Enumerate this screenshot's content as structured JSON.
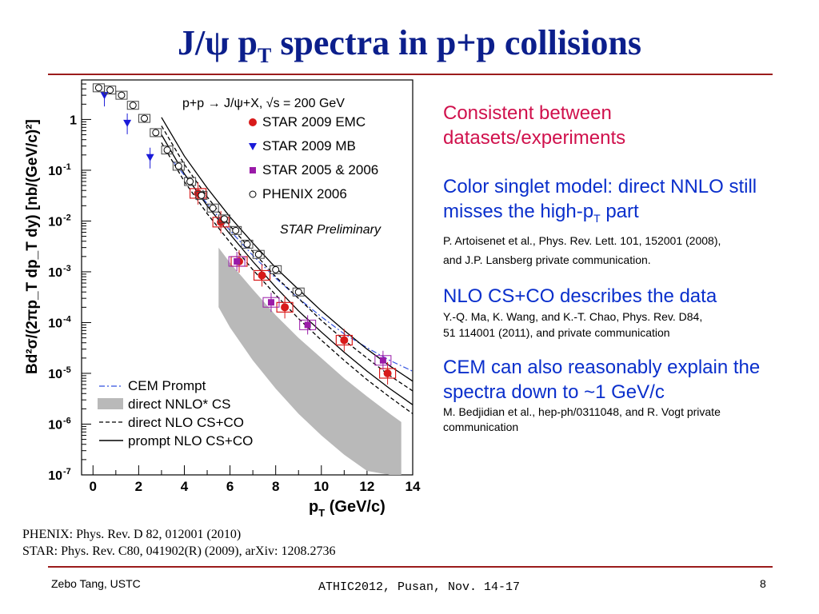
{
  "slide": {
    "title_pre": "J/ψ p",
    "title_sub": "T",
    "title_post": " spectra in p+p collisions",
    "page_number": "8",
    "footer_left": "Zebo Tang, USTC",
    "footer_center": "ATHIC2012, Pusan, Nov. 14-17",
    "references": [
      "PHENIX:  Phys. Rev. D 82, 012001 (2010)",
      "STAR:  Phys. Rev. C80, 041902(R) (2009), arXiv: 1208.2736"
    ]
  },
  "notes": {
    "consistent": "Consistent between datasets/experiments",
    "cs_pre": "Color singlet model: direct NNLO still misses the high-p",
    "cs_sub": "T",
    "cs_post": " part",
    "cs_ref1": "P. Artoisenet et al., Phys. Rev. Lett. 101, 152001 (2008),",
    "cs_ref2": "and J.P. Lansberg private communication.",
    "nlo": "NLO CS+CO describes the data",
    "nlo_ref1": "Y.-Q. Ma, K. Wang, and K.-T. Chao, Phys. Rev. D84,",
    "nlo_ref2": "51 114001 (2011), and private communication",
    "cem": "CEM can also reasonably explain the spectra down to ~1 GeV/c",
    "cem_ref": "M. Bedjidian et al., hep-ph/0311048, and R. Vogt private communication"
  },
  "chart_data": {
    "type": "scatter",
    "process_label": "p+p → J/ψ+X,  √s = 200 GeV",
    "watermark": "STAR Preliminary",
    "xlabel": "p",
    "xlabel_sub": "T",
    "xlabel_unit": " (GeV/c)",
    "ylabel": "Bd²σ/(2πp_T dp_T dy) [nb/(GeV/c)²]",
    "xlim": [
      -0.5,
      14
    ],
    "ylim": [
      1e-07,
      6
    ],
    "log_y": true,
    "x_ticks": [
      "0",
      "2",
      "4",
      "6",
      "8",
      "10",
      "12",
      "14"
    ],
    "y_tick_labels": [
      "1",
      "10",
      "10",
      "10",
      "10",
      "10",
      "10",
      "10"
    ],
    "y_tick_exps": [
      "",
      "-1",
      "-2",
      "-3",
      "-4",
      "-5",
      "-6",
      "-7"
    ],
    "colors": {
      "star_emc": "#d81a1a",
      "star_mb": "#1a1ad8",
      "star_0506": "#9a1aa8",
      "phenix": "#000000",
      "band": "#b9b9b9",
      "cem": "#3050e0"
    },
    "series": [
      {
        "name": "STAR 2009 EMC",
        "marker": "circle",
        "x": [
          4.6,
          5.6,
          6.4,
          7.4,
          8.4,
          11.0,
          12.9
        ],
        "y": [
          0.035,
          0.0095,
          0.0016,
          0.00085,
          0.0002,
          4.5e-05,
          1e-05
        ]
      },
      {
        "name": "STAR 2009 MB",
        "marker": "triangle",
        "x": [
          0.5,
          1.5,
          2.5
        ],
        "y": [
          3.0,
          0.85,
          0.18
        ]
      },
      {
        "name": "STAR 2005 & 2006",
        "marker": "square",
        "x": [
          6.3,
          7.8,
          9.4,
          12.7
        ],
        "y": [
          0.0016,
          0.00025,
          9e-05,
          1.8e-05
        ]
      },
      {
        "name": "PHENIX 2006",
        "marker": "open-circle",
        "x": [
          0.25,
          0.75,
          1.25,
          1.75,
          2.25,
          2.75,
          3.25,
          3.75,
          4.25,
          4.75,
          5.25,
          5.75,
          6.25,
          6.75,
          7.25,
          8.0,
          9.0
        ],
        "y": [
          4.2,
          3.8,
          3.0,
          1.9,
          1.05,
          0.55,
          0.25,
          0.12,
          0.06,
          0.032,
          0.018,
          0.011,
          0.0065,
          0.0035,
          0.0022,
          0.0011,
          0.0004
        ]
      }
    ],
    "curves": [
      {
        "name": "CEM Prompt",
        "style": "dashdot",
        "x": [
          3.5,
          4,
          5,
          6,
          7,
          8,
          9,
          10,
          11,
          12,
          13,
          14
        ],
        "y": [
          0.15,
          0.08,
          0.022,
          0.0065,
          0.0021,
          0.00075,
          0.0003,
          0.00013,
          6e-05,
          3.2e-05,
          1.8e-05,
          1.1e-05
        ]
      },
      {
        "name": "direct NNLO* CS",
        "style": "band",
        "x": [
          5.5,
          6,
          7,
          8,
          9,
          10,
          11,
          12,
          13,
          13.5
        ],
        "y_low": [
          0.0002,
          8e-05,
          1.8e-05,
          5e-06,
          1.6e-06,
          6e-07,
          2.5e-07,
          1.2e-07,
          1e-07,
          1e-07
        ],
        "y_high": [
          0.003,
          0.0015,
          0.00045,
          0.00014,
          5e-05,
          2e-05,
          8e-06,
          3.5e-06,
          1.6e-06,
          1.1e-06
        ]
      },
      {
        "name": "direct NLO CS+CO",
        "style": "dashed",
        "x": [
          3,
          4,
          5,
          6,
          7,
          8,
          9,
          10,
          11,
          12,
          13,
          14
        ],
        "y_low": [
          0.35,
          0.06,
          0.014,
          0.0038,
          0.0011,
          0.00035,
          0.00012,
          4.5e-05,
          1.8e-05,
          7.5e-06,
          3.4e-06,
          1.6e-06
        ],
        "y_high": [
          0.75,
          0.13,
          0.03,
          0.008,
          0.0025,
          0.0008,
          0.0003,
          0.00011,
          4.5e-05,
          2e-05,
          9e-06,
          4.5e-06
        ]
      },
      {
        "name": "prompt NLO CS+CO",
        "style": "solid",
        "x": [
          3,
          4,
          5,
          6,
          7,
          8,
          9,
          10,
          11,
          12,
          13,
          14
        ],
        "y_low": [
          0.5,
          0.085,
          0.02,
          0.0055,
          0.0016,
          0.0005,
          0.00017,
          6.5e-05,
          2.6e-05,
          1.1e-05,
          5e-06,
          2.4e-06
        ],
        "y_high": [
          1.1,
          0.19,
          0.045,
          0.012,
          0.0037,
          0.0012,
          0.00045,
          0.00017,
          7e-05,
          3e-05,
          1.4e-05,
          7e-06
        ]
      }
    ],
    "legend_placement": "bottom-left and top-right"
  }
}
